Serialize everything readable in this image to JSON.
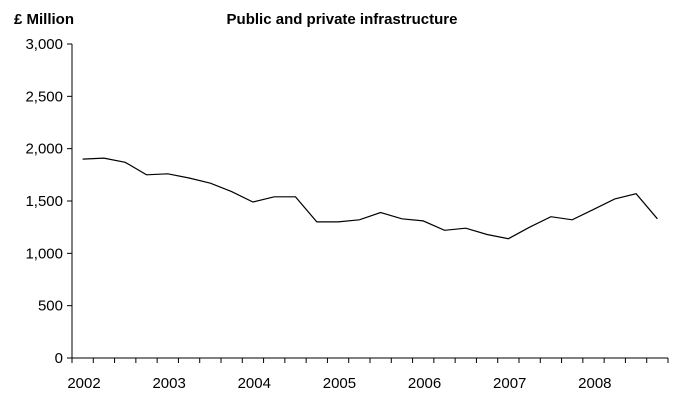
{
  "chart_data": {
    "type": "line",
    "title": "Public and private infrastructure",
    "ylabel": "£ Million",
    "xlabel": "",
    "ylim": [
      0,
      3000
    ],
    "yticks": [
      0,
      500,
      1000,
      1500,
      2000,
      2500,
      3000
    ],
    "ytick_labels": [
      "0",
      "500",
      "1,000",
      "1,500",
      "2,000",
      "2,500",
      "3,000"
    ],
    "xtick_labels": [
      "2002",
      "2003",
      "2004",
      "2005",
      "2006",
      "2007",
      "2008"
    ],
    "grid": false,
    "line_color": "#000000",
    "series": [
      {
        "x": [
          "2002 Q1",
          "2002 Q2",
          "2002 Q3",
          "2002 Q4",
          "2003 Q1",
          "2003 Q2",
          "2003 Q3",
          "2003 Q4",
          "2004 Q1",
          "2004 Q2",
          "2004 Q3",
          "2004 Q4",
          "2005 Q1",
          "2005 Q2",
          "2005 Q3",
          "2005 Q4",
          "2006 Q1",
          "2006 Q2",
          "2006 Q3",
          "2006 Q4",
          "2007 Q1",
          "2007 Q2",
          "2007 Q3",
          "2007 Q4",
          "2008 Q1",
          "2008 Q2",
          "2008 Q3",
          "2008 Q4"
        ],
        "values": [
          1900,
          1910,
          1870,
          1750,
          1760,
          1720,
          1670,
          1590,
          1490,
          1540,
          1540,
          1300,
          1300,
          1320,
          1390,
          1330,
          1310,
          1220,
          1240,
          1180,
          1140,
          1250,
          1350,
          1320,
          1420,
          1520,
          1570,
          1330
        ]
      }
    ]
  }
}
